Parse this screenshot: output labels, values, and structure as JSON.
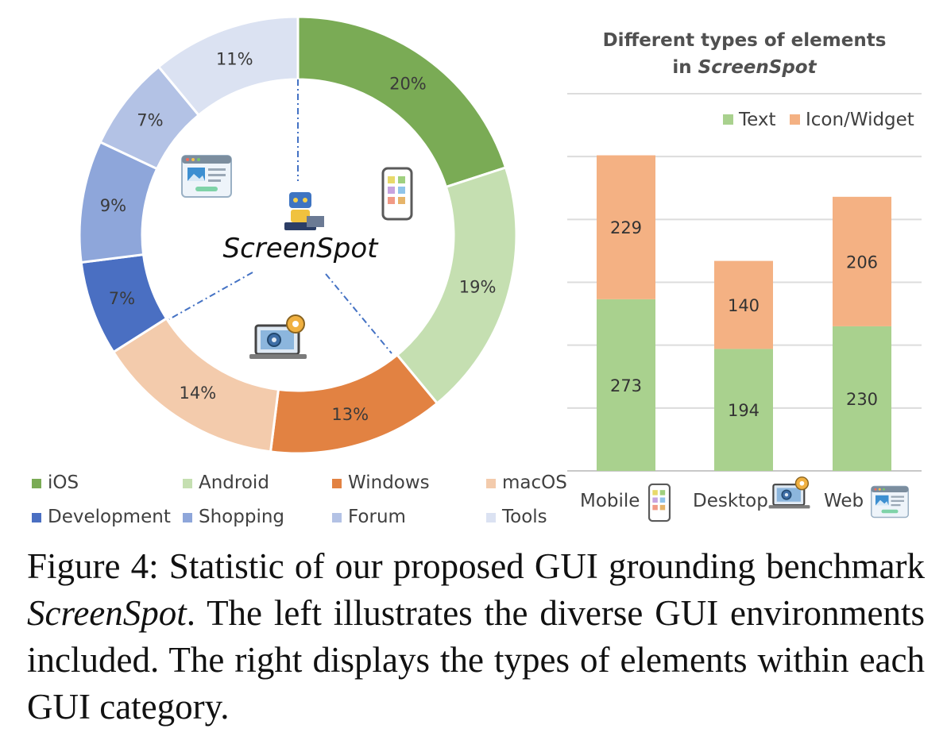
{
  "chart_data": [
    {
      "type": "pie",
      "variant": "donut",
      "center_label": "ScreenSpot",
      "slices": [
        {
          "name": "iOS",
          "value": 20,
          "label": "20%",
          "color": "#7aab55"
        },
        {
          "name": "Android",
          "value": 19,
          "label": "19%",
          "color": "#c5dfb1"
        },
        {
          "name": "Windows",
          "value": 13,
          "label": "13%",
          "color": "#e28242"
        },
        {
          "name": "macOS",
          "value": 14,
          "label": "14%",
          "color": "#f3cbac"
        },
        {
          "name": "Development",
          "value": 7,
          "label": "7%",
          "color": "#4a6fc2"
        },
        {
          "name": "Shopping",
          "value": 9,
          "label": "9%",
          "color": "#8ea6da"
        },
        {
          "name": "Forum",
          "value": 7,
          "label": "7%",
          "color": "#b3c2e5"
        },
        {
          "name": "Tools",
          "value": 11,
          "label": "11%",
          "color": "#dbe2f2"
        }
      ],
      "legend_position": "bottom",
      "icons": [
        "web-browser-icon",
        "mobile-phone-icon",
        "robot-icon",
        "laptop-gear-icon"
      ]
    },
    {
      "type": "bar",
      "stacked": true,
      "title_line1": "Different types of elements",
      "title_line2_prefix": "in ",
      "title_line2_em": "ScreenSpot",
      "categories": [
        "Mobile",
        "Desktop",
        "Web"
      ],
      "category_icons": [
        "mobile-phone-icon",
        "laptop-gear-icon",
        "web-browser-icon"
      ],
      "series": [
        {
          "name": "Text",
          "values": [
            273,
            194,
            230
          ],
          "color": "#a9d18e"
        },
        {
          "name": "Icon/Widget",
          "values": [
            229,
            140,
            206
          ],
          "color": "#f4b183"
        }
      ],
      "ylim": [
        0,
        500
      ],
      "grid": true,
      "legend_position": "top-right"
    }
  ],
  "caption": {
    "prefix": "Figure 4:  Statistic of our proposed GUI grounding benchmark ",
    "em": "ScreenSpot",
    "suffix": ". The left illustrates the diverse GUI environments included.  The right displays the types of elements within each GUI category."
  }
}
